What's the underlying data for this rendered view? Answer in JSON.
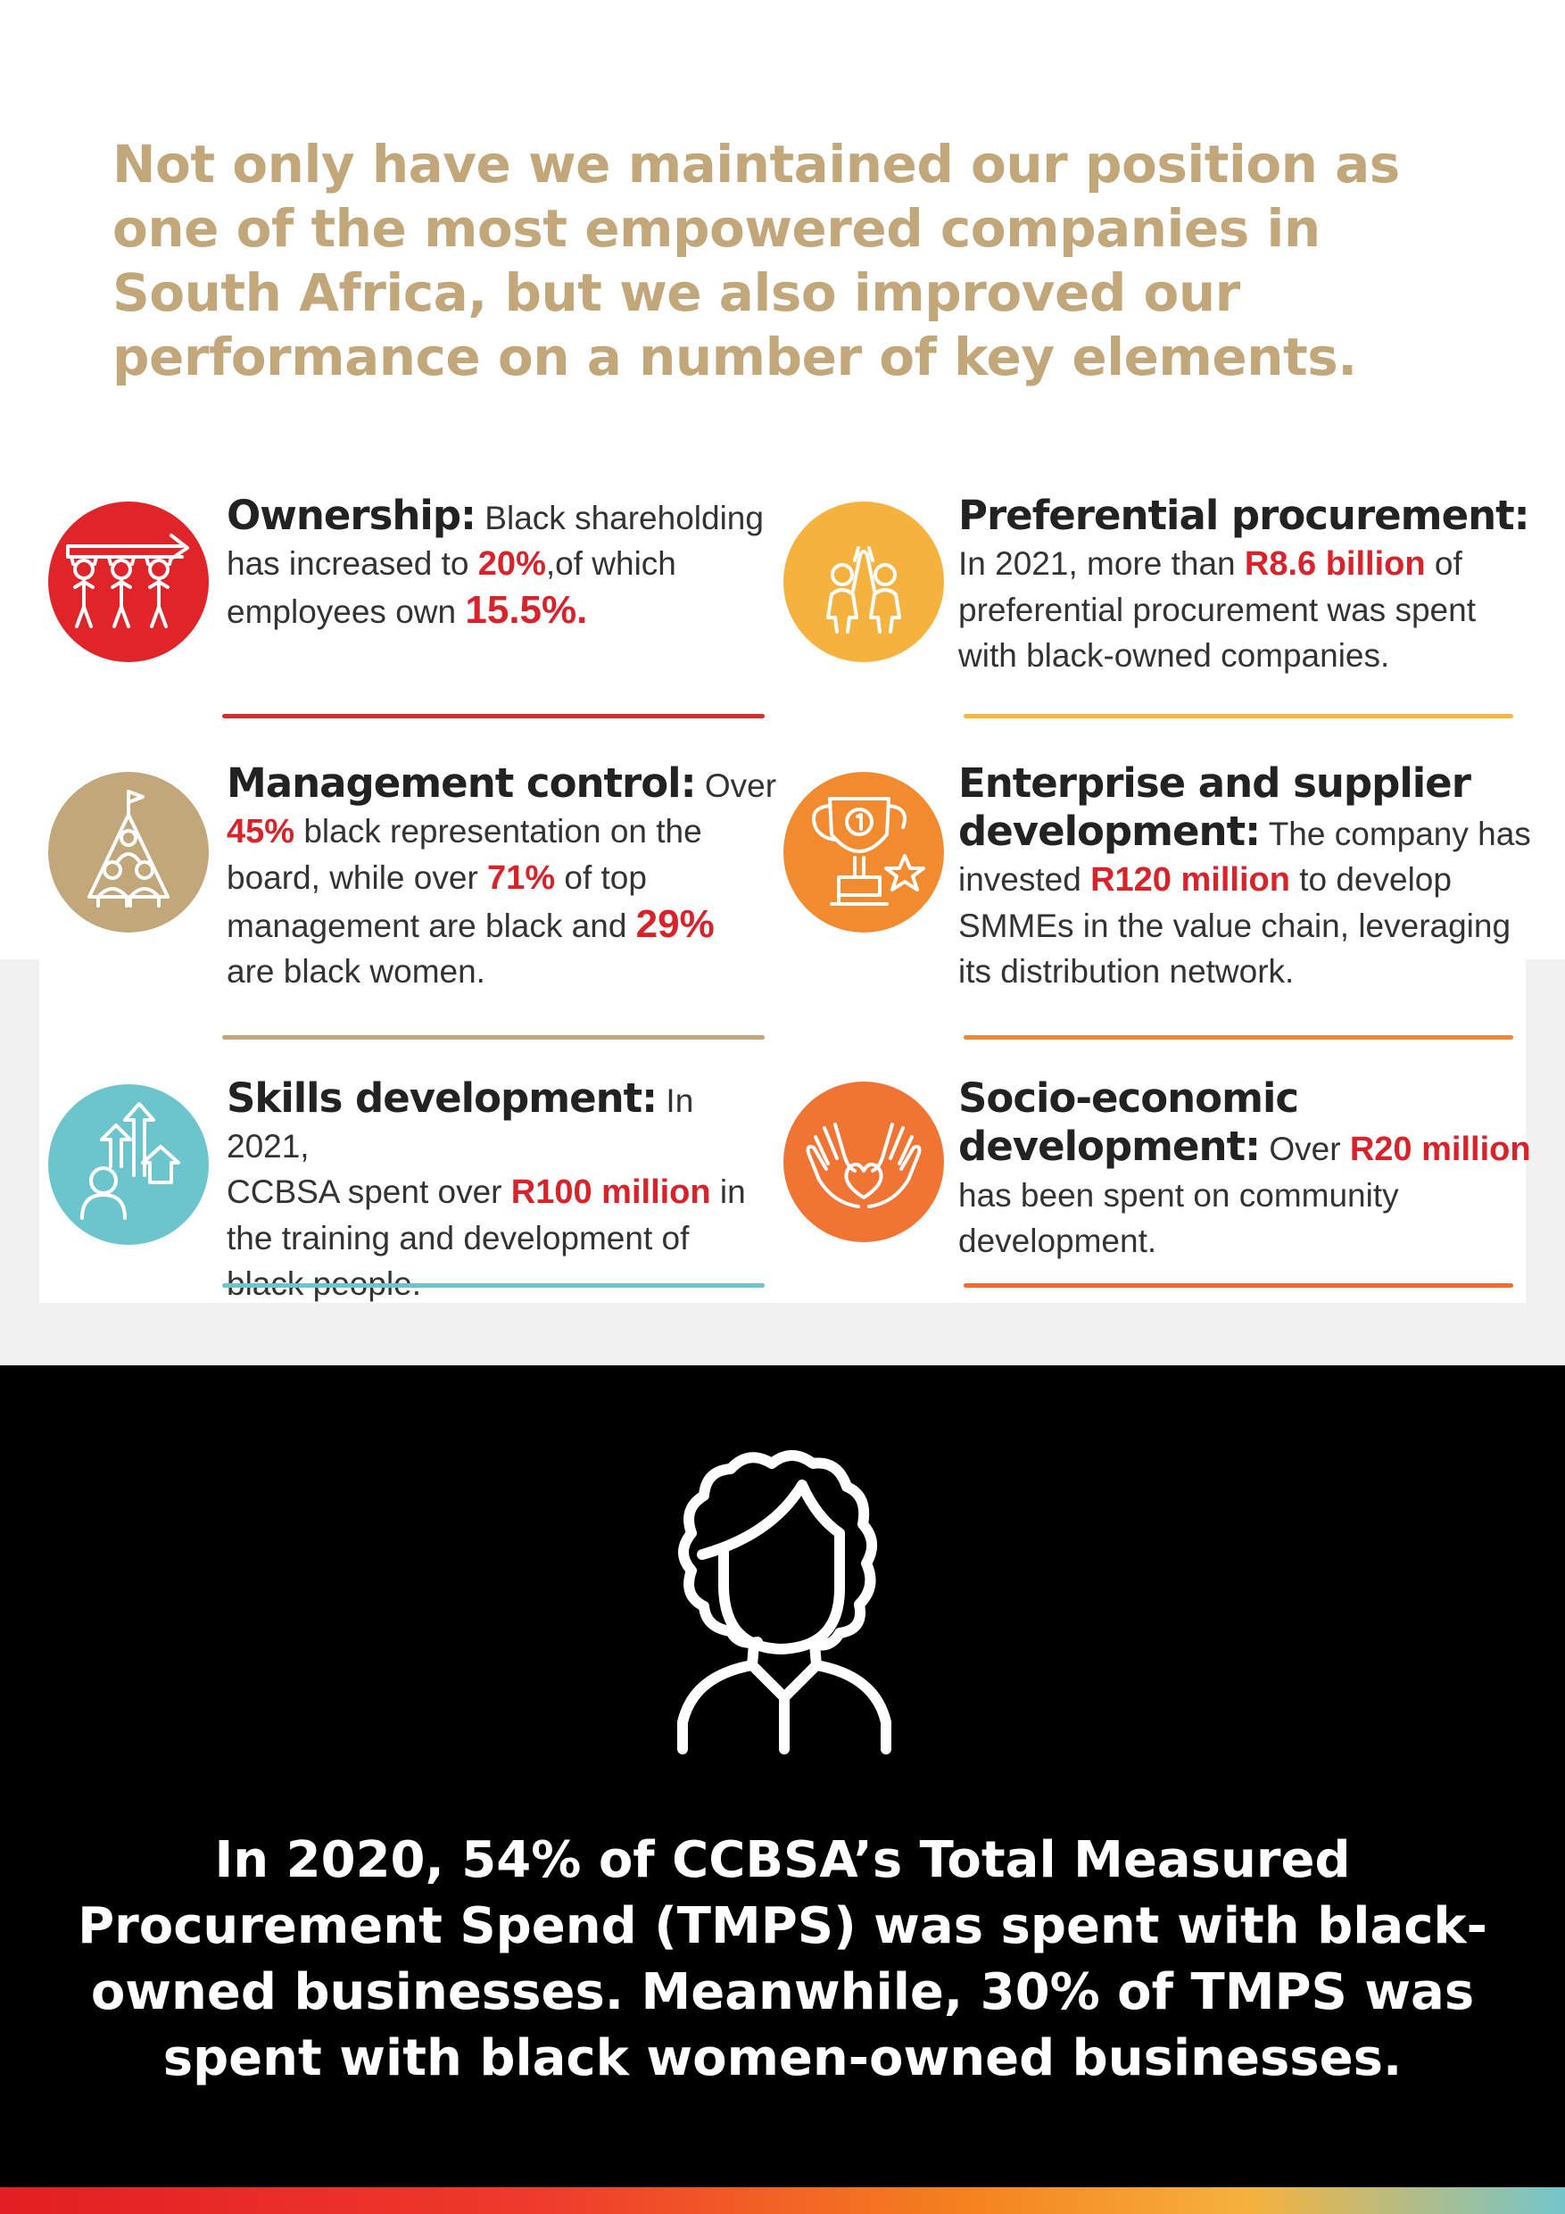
{
  "headline": "Not only have we maintained our position as one of the most empowered companies in South Africa, but we also improved our performance on a number of key elements.",
  "colors": {
    "headline": "#c2a77b",
    "highlight": "#d8232a",
    "ownership": "#e0252a",
    "procurement": "#f6b23e",
    "management": "#c2a77b",
    "enterprise": "#f28a30",
    "skills": "#6cc5cc",
    "socio": "#f07535"
  },
  "items": {
    "ownership": {
      "icon": "people-pulling-arrow-icon",
      "title": "Ownership:",
      "l1": " Black shareholding",
      "l2a": "has increased to ",
      "l2b": "20%",
      "l2c": ",of which",
      "l3a": "employees own ",
      "l3b": "15.5%."
    },
    "procurement": {
      "icon": "high-five-icon",
      "title": "Preferential procurement:",
      "l2a": "In 2021, more than ",
      "l2b": "R8.6 billion",
      "l2c": " of",
      "l3": "preferential procurement was spent",
      "l4": "with black-owned companies."
    },
    "management": {
      "icon": "team-flag-pyramid-icon",
      "title": "Management control:",
      "l1": " Over",
      "l2a": "45%",
      "l2b": " black representation on the",
      "l3a": "board, while over ",
      "l3b": "71%",
      "l3c": " of top",
      "l4a": "management are black and ",
      "l4b": "29%",
      "l5": "are black women."
    },
    "enterprise": {
      "icon": "trophy-star-icon",
      "title1": "Enterprise and supplier",
      "title2": "development:",
      "l2": " The company has",
      "l3a": "invested ",
      "l3b": "R120 million",
      "l3c": " to develop",
      "l4": "SMMEs in the value chain, leveraging",
      "l5": "its distribution network."
    },
    "skills": {
      "icon": "growth-arrows-person-icon",
      "title": "Skills development:",
      "l1": " In 2021,",
      "l2a": "CCBSA spent over ",
      "l2b": "R100 million",
      "l2c": "  in",
      "l3": "the training and development of",
      "l4": "black people."
    },
    "socio": {
      "icon": "hands-heart-icon",
      "title1": "Socio-economic",
      "title2": "development:",
      "l2a": " Over ",
      "l2b": "R20 million",
      "l3": "has been spent on community",
      "l4": "development."
    }
  },
  "bottom": {
    "icon": "woman-outline-icon",
    "text": "In 2020, 54% of CCBSA’s Total Measured Procurement Spend (TMPS) was spent with black-owned businesses. Meanwhile, 30% of TMPS was spent with black women-owned businesses."
  }
}
